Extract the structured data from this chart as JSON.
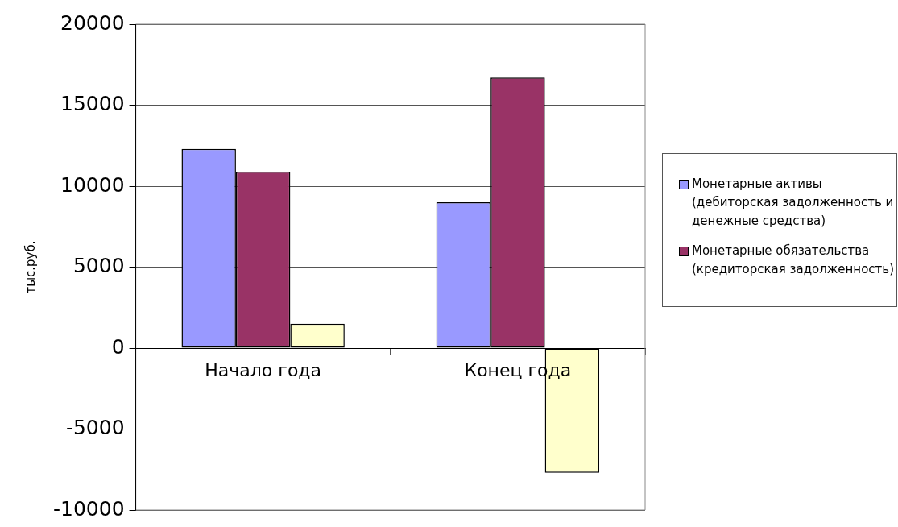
{
  "chart_data": {
    "type": "bar",
    "ylabel": "тыс.руб.",
    "categories": [
      "Начало года",
      "Конец года"
    ],
    "series": [
      {
        "name": "Монетарные активы (дебиторская задолженность и денежные средства)",
        "color": "#9999ff",
        "values": [
          12300,
          9000
        ]
      },
      {
        "name": "Монетарные обязательства (кредиторская задолженность)",
        "color": "#993366",
        "values": [
          10900,
          16700
        ]
      },
      {
        "color": "#ffffcc",
        "values": [
          1500,
          -7700
        ]
      }
    ],
    "ylim": [
      -10000,
      20000
    ],
    "yticks": [
      -10000,
      -5000,
      0,
      5000,
      10000,
      15000,
      20000
    ],
    "grid": "y",
    "legend": "right"
  }
}
